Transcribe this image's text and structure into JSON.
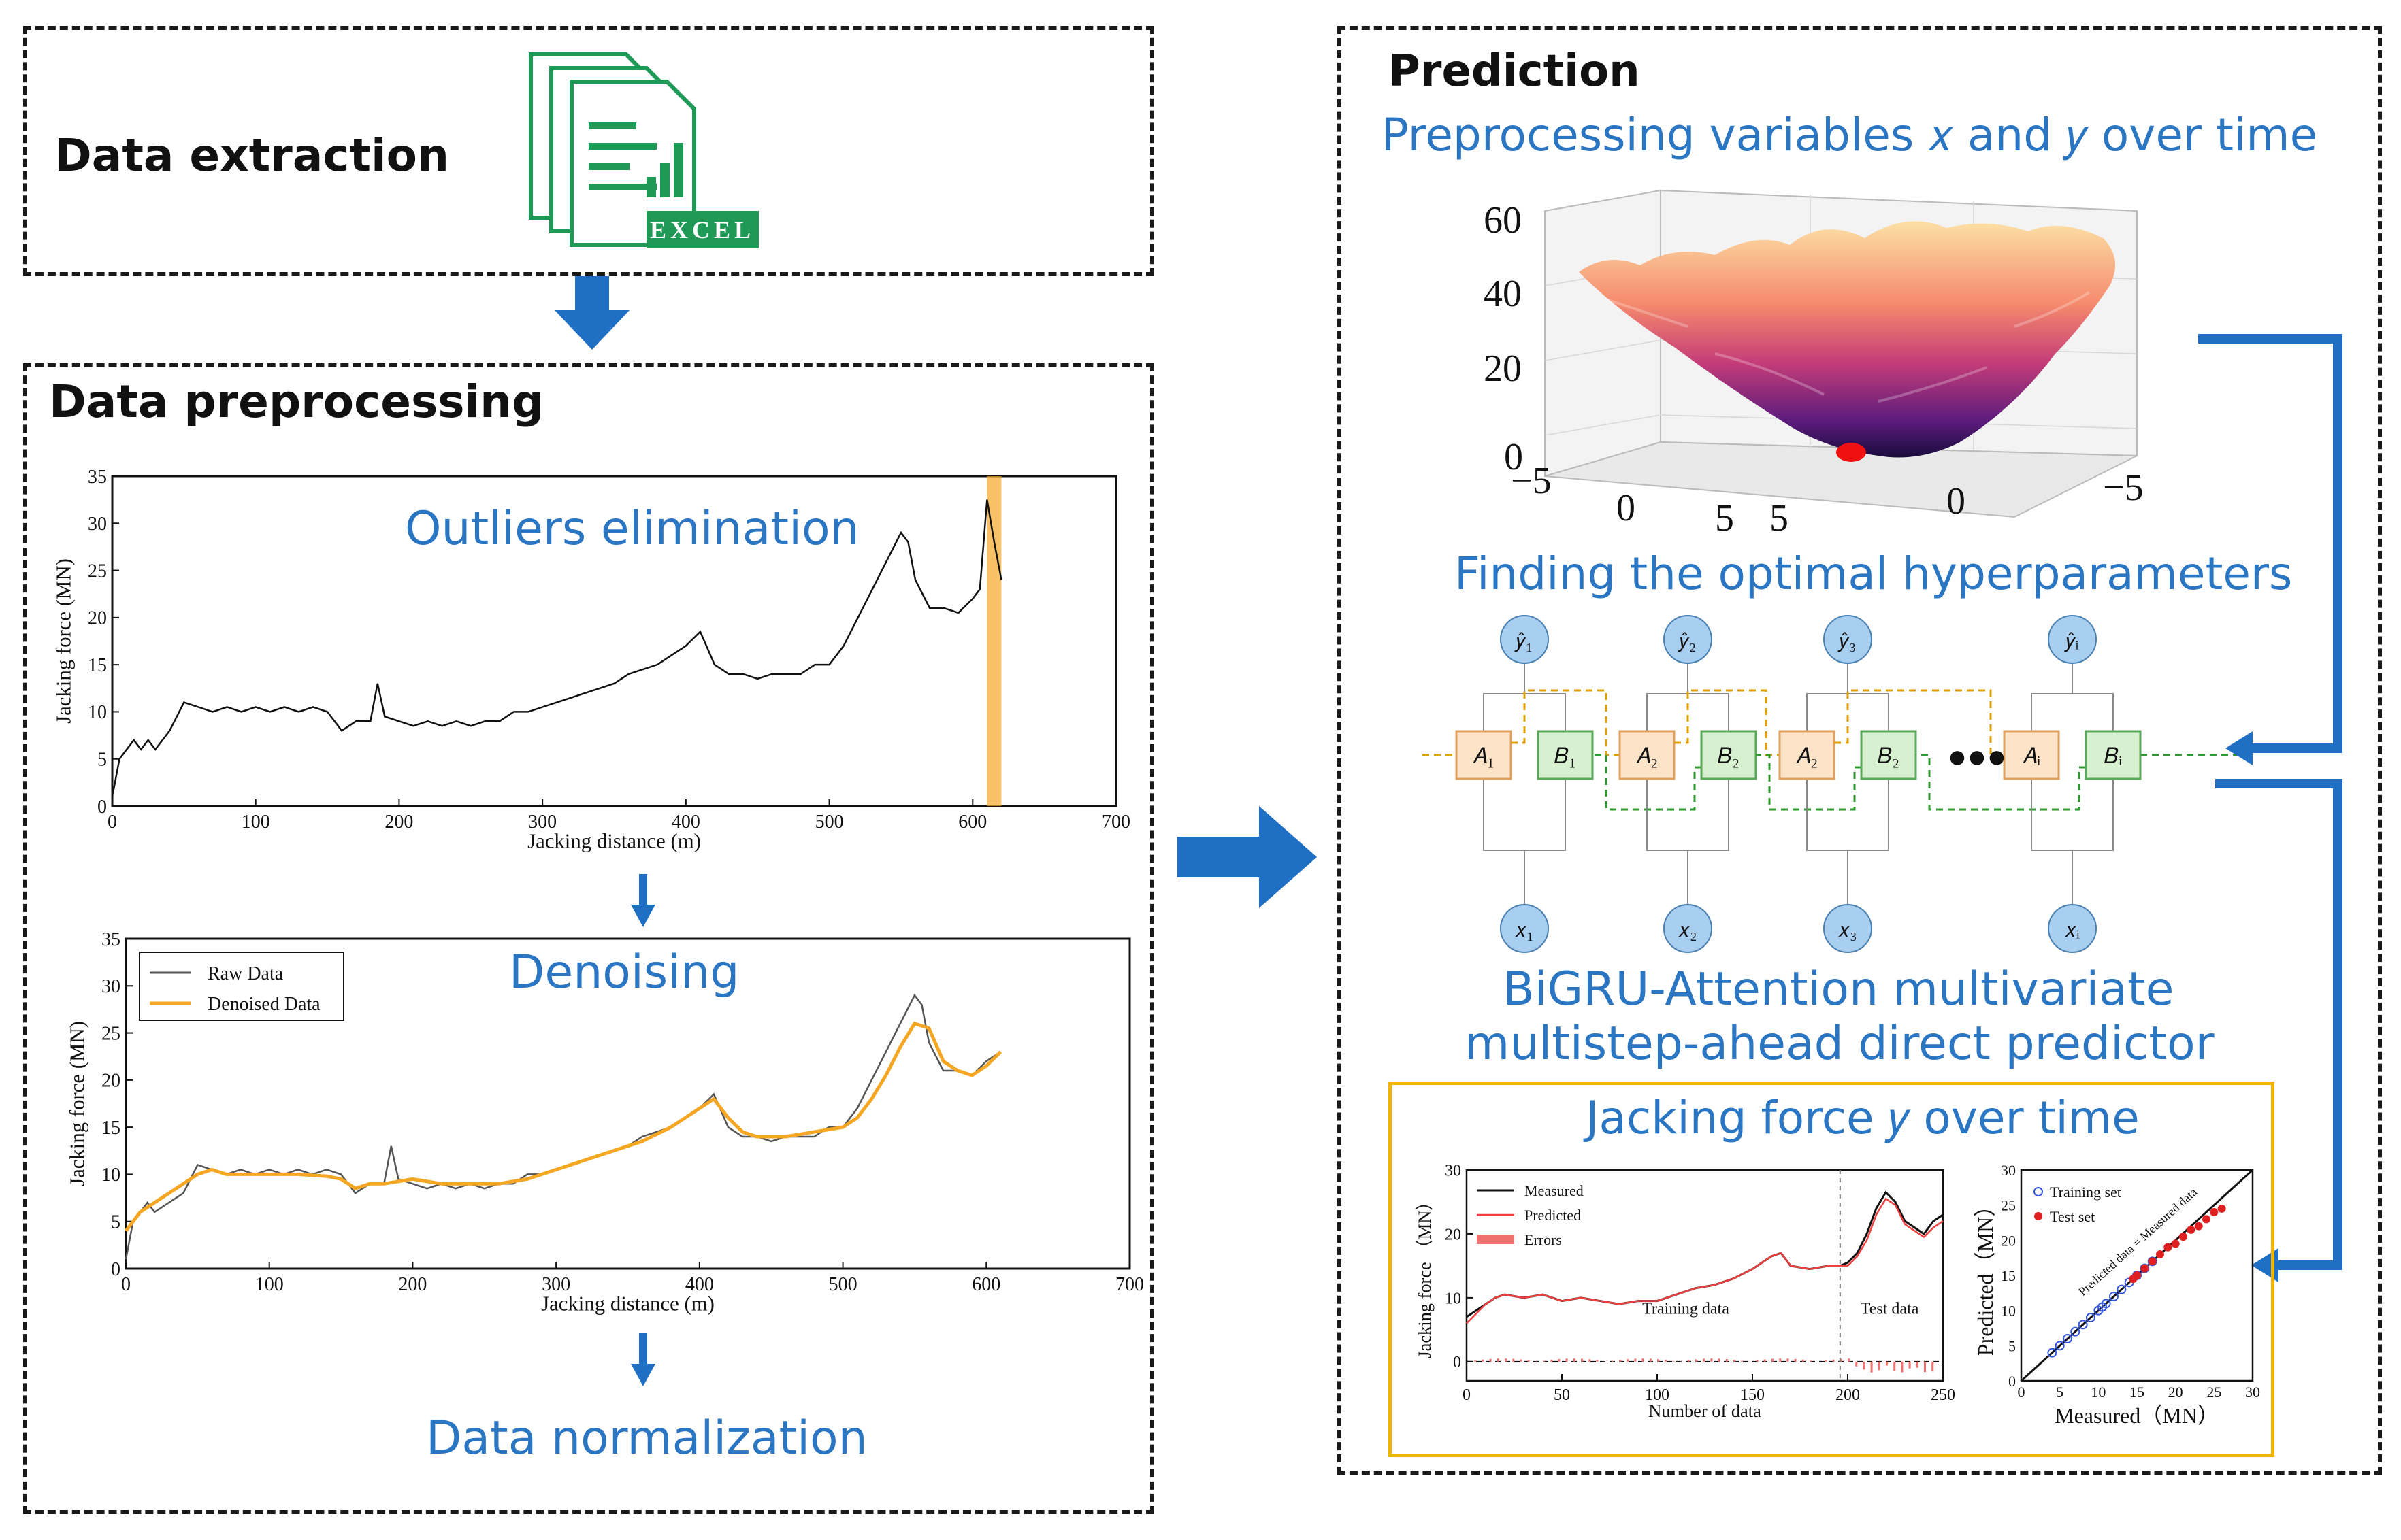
{
  "extraction": {
    "title": "Data extraction",
    "excel_label": "EXCEL"
  },
  "preprocessing": {
    "title": "Data preprocessing",
    "outliers_label": "Outliers elimination",
    "denoising_label": "Denoising",
    "normalization_label": "Data normalization"
  },
  "prediction": {
    "title": "Prediction",
    "preprocess_label": "Preprocessing variables 𝑥 and 𝑦 over time",
    "hyper_label": "Finding the optimal hyperparameters",
    "predictor_line1": "BiGRU-Attention multivariate",
    "predictor_line2": "multistep-ahead direct predictor",
    "jacking_label": "Jacking force 𝑦 over time"
  },
  "colors": {
    "accent_blue": "#2b76c2",
    "arrow_blue": "#1f6fc4",
    "orange": "#f5a623",
    "gold_border": "#f0b400"
  },
  "chart_data": [
    {
      "type": "line",
      "xlabel": "Jacking distance (m)",
      "ylabel": "Jacking force (MN)",
      "xlim": [
        0,
        700
      ],
      "ylim": [
        0,
        35
      ],
      "xticks": [
        "0",
        "100",
        "200",
        "300",
        "400",
        "500",
        "600",
        "700"
      ],
      "yticks": [
        "0",
        "5",
        "10",
        "15",
        "20",
        "25",
        "30",
        "35"
      ],
      "highlight_band_x": [
        610,
        620
      ],
      "series": [
        {
          "x": [
            0,
            5,
            10,
            15,
            20,
            25,
            30,
            40,
            50,
            60,
            70,
            80,
            90,
            100,
            110,
            120,
            130,
            140,
            150,
            160,
            170,
            180,
            185,
            190,
            200,
            210,
            220,
            230,
            240,
            250,
            260,
            270,
            280,
            290,
            300,
            310,
            320,
            330,
            340,
            350,
            360,
            370,
            380,
            390,
            400,
            410,
            420,
            430,
            440,
            450,
            460,
            470,
            480,
            490,
            500,
            510,
            520,
            530,
            540,
            550,
            555,
            560,
            570,
            580,
            590,
            600,
            605,
            610,
            615,
            620
          ],
          "y": [
            1,
            5,
            6,
            7,
            6,
            7,
            6,
            8,
            11,
            10.5,
            10,
            10.5,
            10,
            10.5,
            10,
            10.5,
            10,
            10.5,
            10,
            8,
            9,
            9,
            13,
            9.5,
            9,
            8.5,
            9,
            8.5,
            9,
            8.5,
            9,
            9,
            10,
            10,
            10.5,
            11,
            11.5,
            12,
            12.5,
            13,
            14,
            14.5,
            15,
            16,
            17,
            18.5,
            15,
            14,
            14,
            13.5,
            14,
            14,
            14,
            15,
            15,
            17,
            20,
            23,
            26,
            29,
            28,
            24,
            21,
            21,
            20.5,
            22,
            23,
            32.5,
            28,
            24
          ]
        }
      ]
    },
    {
      "type": "line",
      "xlabel": "Jacking distance (m)",
      "ylabel": "Jacking force (MN)",
      "xlim": [
        0,
        700
      ],
      "ylim": [
        0,
        35
      ],
      "xticks": [
        "0",
        "100",
        "200",
        "300",
        "400",
        "500",
        "600",
        "700"
      ],
      "yticks": [
        "0",
        "5",
        "10",
        "15",
        "20",
        "25",
        "30",
        "35"
      ],
      "legend": "top-left",
      "series": [
        {
          "name": "Raw Data",
          "x": [
            0,
            5,
            10,
            15,
            20,
            30,
            40,
            50,
            60,
            70,
            80,
            90,
            100,
            110,
            120,
            130,
            140,
            150,
            160,
            170,
            180,
            185,
            190,
            200,
            210,
            220,
            230,
            240,
            250,
            260,
            270,
            280,
            290,
            300,
            310,
            320,
            330,
            340,
            350,
            360,
            370,
            380,
            390,
            400,
            410,
            420,
            430,
            440,
            450,
            460,
            470,
            480,
            490,
            500,
            510,
            520,
            530,
            540,
            550,
            555,
            560,
            570,
            580,
            590,
            600,
            610
          ],
          "y": [
            1,
            5,
            6,
            7,
            6,
            7,
            8,
            11,
            10.5,
            10,
            10.5,
            10,
            10.5,
            10,
            10.5,
            10,
            10.5,
            10,
            8,
            9,
            9,
            13,
            9.5,
            9,
            8.5,
            9,
            8.5,
            9,
            8.5,
            9,
            9,
            10,
            10,
            10.5,
            11,
            11.5,
            12,
            12.5,
            13,
            14,
            14.5,
            15,
            16,
            17,
            18.5,
            15,
            14,
            14,
            13.5,
            14,
            14,
            14,
            15,
            15,
            17,
            20,
            23,
            26,
            29,
            28,
            24,
            21,
            21,
            20.5,
            22,
            23
          ]
        },
        {
          "name": "Denoised Data",
          "x": [
            0,
            10,
            20,
            30,
            40,
            50,
            60,
            70,
            80,
            90,
            100,
            120,
            140,
            150,
            160,
            170,
            180,
            200,
            220,
            240,
            260,
            280,
            300,
            320,
            340,
            360,
            380,
            400,
            410,
            420,
            430,
            440,
            460,
            480,
            500,
            510,
            520,
            530,
            540,
            550,
            560,
            570,
            580,
            590,
            600,
            610
          ],
          "y": [
            4,
            6,
            7,
            8,
            9,
            10,
            10.5,
            10,
            10,
            10,
            10,
            10,
            9.8,
            9.5,
            8.5,
            9,
            9,
            9.5,
            9,
            9,
            9,
            9.5,
            10.5,
            11.5,
            12.5,
            13.5,
            15,
            17,
            18,
            16,
            14.5,
            14,
            14,
            14.5,
            15,
            16,
            18,
            20.5,
            23.5,
            26,
            25.5,
            22,
            21,
            20.5,
            21.5,
            23
          ]
        }
      ]
    },
    {
      "type": "line",
      "xlabel": "Number of data",
      "ylabel": "Jacking force （MN）",
      "xlim": [
        0,
        250
      ],
      "ylim": [
        -3,
        30
      ],
      "xticks": [
        "0",
        "50",
        "100",
        "150",
        "200",
        "250"
      ],
      "yticks": [
        "0",
        "10",
        "20",
        "30"
      ],
      "legend": "top-left",
      "annotations": [
        "Training data",
        "Test data"
      ],
      "split_x": 196,
      "series": [
        {
          "name": "Measured",
          "x": [
            0,
            5,
            10,
            15,
            20,
            30,
            40,
            50,
            60,
            70,
            80,
            90,
            100,
            110,
            120,
            130,
            140,
            150,
            160,
            165,
            170,
            180,
            190,
            196,
            200,
            205,
            210,
            215,
            220,
            225,
            230,
            235,
            240,
            245,
            250
          ],
          "y": [
            7,
            8,
            9,
            10,
            10.5,
            10,
            10.5,
            9.5,
            10,
            9.5,
            9,
            9.5,
            9.5,
            10.5,
            11.5,
            12,
            13,
            14.5,
            16.5,
            17,
            15,
            14.5,
            15,
            15,
            15.5,
            17,
            20,
            24,
            26.5,
            25,
            22,
            21,
            20,
            22,
            23
          ]
        },
        {
          "name": "Predicted",
          "x": [
            0,
            5,
            10,
            15,
            20,
            30,
            40,
            50,
            60,
            70,
            80,
            90,
            100,
            110,
            120,
            130,
            140,
            150,
            160,
            165,
            170,
            180,
            190,
            196,
            200,
            205,
            210,
            215,
            220,
            225,
            230,
            235,
            240,
            245,
            250
          ],
          "y": [
            6,
            7.5,
            9,
            10,
            10.5,
            10,
            10.5,
            9.5,
            10,
            9.5,
            9,
            9.5,
            9.5,
            10.5,
            11.5,
            12,
            13,
            14.5,
            16.5,
            17,
            15,
            14.5,
            15,
            15,
            15,
            16.5,
            19,
            23,
            25.5,
            24.5,
            21.5,
            20.5,
            19.5,
            21,
            22
          ]
        },
        {
          "name": "Errors",
          "x": [],
          "y": []
        }
      ]
    },
    {
      "type": "scatter",
      "xlabel": "Measured（MN）",
      "ylabel": "Predicted（MN）",
      "xlim": [
        0,
        30
      ],
      "ylim": [
        0,
        30
      ],
      "xticks": [
        "0",
        "5",
        "10",
        "15",
        "20",
        "25",
        "30"
      ],
      "yticks": [
        "0",
        "5",
        "10",
        "15",
        "20",
        "25",
        "30"
      ],
      "legend": "top-left",
      "annotations": [
        "Predicted data = Measured data"
      ],
      "series": [
        {
          "name": "Training set",
          "x": [
            4,
            5,
            6,
            7,
            8,
            9,
            10,
            10.5,
            11,
            12,
            13,
            14,
            15,
            16,
            17
          ],
          "y": [
            4,
            5,
            6,
            7,
            8,
            9,
            10,
            10.5,
            11,
            12,
            13,
            14,
            15,
            16,
            17
          ]
        },
        {
          "name": "Test set",
          "x": [
            14.5,
            15,
            16,
            17,
            18,
            19,
            20,
            21,
            22,
            23,
            24,
            25,
            26
          ],
          "y": [
            14.5,
            15,
            16,
            17,
            18,
            19,
            19.5,
            20.5,
            21.5,
            22,
            23,
            24,
            24.5
          ]
        }
      ]
    },
    {
      "type": "surface",
      "zticks": [
        "0",
        "20",
        "40",
        "60"
      ],
      "xticks": [
        "−5",
        "0",
        "5"
      ],
      "yticks": [
        "5",
        "0",
        "−5"
      ]
    }
  ],
  "network": {
    "outputs": [
      "𝑦̂₁",
      "𝑦̂₂",
      "𝑦̂₃",
      "𝑦̂ᵢ"
    ],
    "inputs": [
      "𝑥₁",
      "𝑥₂",
      "𝑥₃",
      "𝑥ᵢ"
    ],
    "forward_cells": [
      "𝐴₁",
      "𝐴₂",
      "𝐴₂",
      "𝐴ᵢ"
    ],
    "backward_cells": [
      "𝐵₁",
      "𝐵₂",
      "𝐵₂",
      "𝐵ᵢ"
    ],
    "ellipsis": "●●●"
  }
}
